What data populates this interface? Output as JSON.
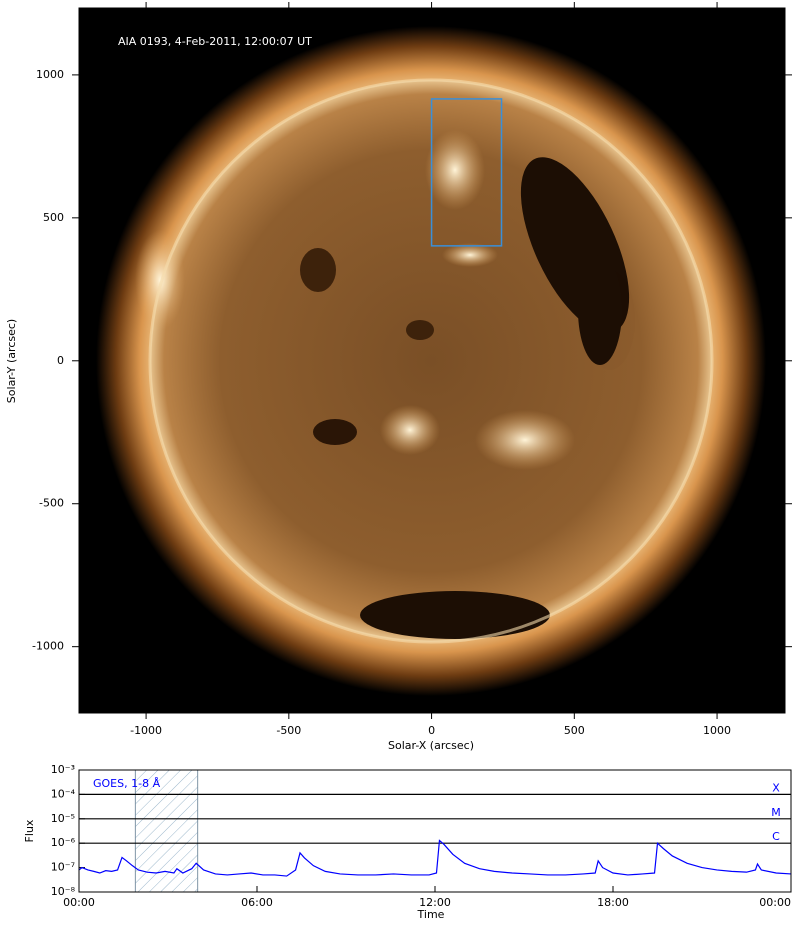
{
  "chart_data": [
    {
      "type": "image",
      "annotation": "AIA 0193, 4-Feb-2011, 12:00:07 UT",
      "xlabel": "Solar-X (arcsec)",
      "ylabel": "Solar-Y (arcsec)",
      "xlim": [
        -1235,
        1238
      ],
      "ylim": [
        -1232,
        1234
      ],
      "xticks": [
        -1000,
        -500,
        0,
        500,
        1000
      ],
      "yticks": [
        -1000,
        -500,
        0,
        500,
        1000
      ],
      "box": {
        "xlim": [
          0,
          245
        ],
        "ylim": [
          402,
          916
        ],
        "color": "#3a8fd8"
      }
    },
    {
      "type": "line",
      "xlabel": "Time",
      "ylabel": "Flux",
      "ylog": true,
      "xlim": [
        0,
        24
      ],
      "ylim": [
        1e-08,
        0.001
      ],
      "xticks": [
        {
          "value": 0,
          "label": "00:00"
        },
        {
          "value": 6,
          "label": "06:00"
        },
        {
          "value": 12,
          "label": "12:00"
        },
        {
          "value": 18,
          "label": "18:00"
        },
        {
          "value": 24,
          "label": "00:00"
        }
      ],
      "yticks": [
        {
          "value": 1e-08,
          "label": "10⁻⁸"
        },
        {
          "value": 1e-07,
          "label": "10⁻⁷"
        },
        {
          "value": 1e-06,
          "label": "10⁻⁶"
        },
        {
          "value": 1e-05,
          "label": "10⁻⁵"
        },
        {
          "value": 0.0001,
          "label": "10⁻⁴"
        },
        {
          "value": 0.001,
          "label": "10⁻³"
        }
      ],
      "span": [
        1.9,
        4.0
      ],
      "flare_classes": [
        {
          "value": 0.0001,
          "label": "X"
        },
        {
          "value": 1e-05,
          "label": "M"
        },
        {
          "value": 1e-06,
          "label": "C"
        }
      ],
      "x": [
        0,
        0.1,
        0.3,
        0.5,
        0.7,
        0.9,
        1.1,
        1.3,
        1.45,
        1.6,
        1.8,
        2.0,
        2.3,
        2.6,
        2.9,
        3.2,
        3.3,
        3.5,
        3.8,
        3.95,
        4.2,
        4.6,
        5.0,
        5.4,
        5.8,
        6.2,
        6.6,
        7.0,
        7.3,
        7.45,
        7.6,
        7.9,
        8.3,
        8.8,
        9.4,
        10.0,
        10.6,
        11.2,
        11.8,
        12.05,
        12.15,
        12.3,
        12.6,
        13.0,
        13.5,
        14.0,
        14.6,
        15.2,
        15.8,
        16.4,
        17.0,
        17.4,
        17.5,
        17.65,
        18.0,
        18.5,
        19.0,
        19.4,
        19.5,
        19.7,
        20.0,
        20.5,
        21.0,
        21.5,
        22.0,
        22.5,
        22.8,
        22.87,
        23.0,
        23.5,
        24.0
      ],
      "series": [
        {
          "name": "GOES, 1-8 Å",
          "color": "#0000ff",
          "values": [
            8e-08,
            1e-07,
            8e-08,
            7e-08,
            6e-08,
            7.5e-08,
            7e-08,
            8e-08,
            2.6e-07,
            1.9e-07,
            1.2e-07,
            8e-08,
            6.5e-08,
            6e-08,
            7e-08,
            6e-08,
            9e-08,
            6e-08,
            9e-08,
            1.5e-07,
            8e-08,
            5.5e-08,
            5e-08,
            5.5e-08,
            6e-08,
            5e-08,
            5e-08,
            4.5e-08,
            8e-08,
            4e-07,
            2.5e-07,
            1.2e-07,
            7e-08,
            5.5e-08,
            5e-08,
            5e-08,
            5.5e-08,
            5e-08,
            5e-08,
            6e-08,
            1.3e-06,
            9e-07,
            3.5e-07,
            1.5e-07,
            9e-08,
            7e-08,
            6e-08,
            5.5e-08,
            5e-08,
            5e-08,
            5.5e-08,
            6e-08,
            1.9e-07,
            1e-07,
            6e-08,
            5e-08,
            5.5e-08,
            6e-08,
            1e-06,
            6e-07,
            3e-07,
            1.5e-07,
            1e-07,
            8e-08,
            7e-08,
            6.5e-08,
            8e-08,
            1.4e-07,
            8e-08,
            6e-08,
            5.5e-08
          ]
        }
      ]
    }
  ]
}
